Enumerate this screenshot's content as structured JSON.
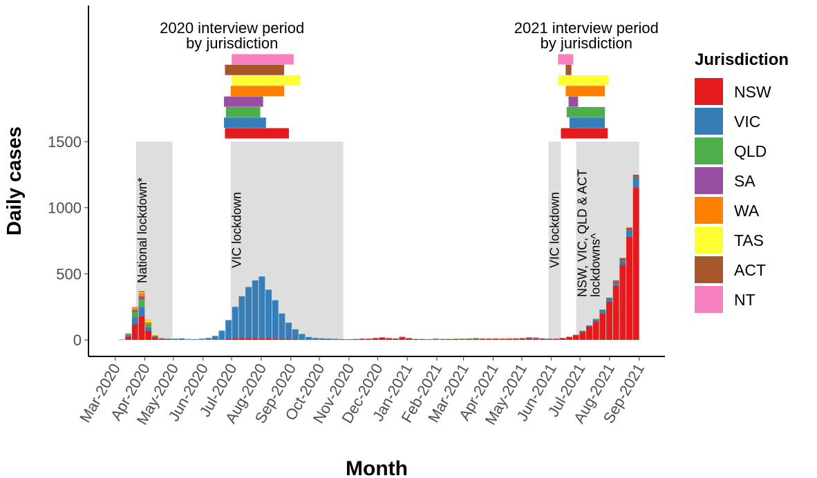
{
  "chart_data": {
    "type": "stacked-bar",
    "xlabel": "Month",
    "ylabel": "Daily cases",
    "legend_title": "Jurisdiction",
    "legend_position": "right",
    "xlim": [
      -28,
      576
    ],
    "ylim": [
      -125,
      2530
    ],
    "yticks": [
      0,
      500,
      1000,
      1500
    ],
    "xticks": [
      {
        "value": 0,
        "label": "Mar-2020"
      },
      {
        "value": 31,
        "label": "Apr-2020"
      },
      {
        "value": 61,
        "label": "May-2020"
      },
      {
        "value": 92,
        "label": "Jun-2020"
      },
      {
        "value": 122,
        "label": "Jul-2020"
      },
      {
        "value": 153,
        "label": "Aug-2020"
      },
      {
        "value": 184,
        "label": "Sep-2020"
      },
      {
        "value": 214,
        "label": "Oct-2020"
      },
      {
        "value": 245,
        "label": "Nov-2020"
      },
      {
        "value": 275,
        "label": "Dec-2020"
      },
      {
        "value": 306,
        "label": "Jan-2021"
      },
      {
        "value": 337,
        "label": "Feb-2021"
      },
      {
        "value": 365,
        "label": "Mar-2021"
      },
      {
        "value": 396,
        "label": "Apr-2021"
      },
      {
        "value": 426,
        "label": "May-2021"
      },
      {
        "value": 457,
        "label": "Jun-2021"
      },
      {
        "value": 487,
        "label": "Jul-2021"
      },
      {
        "value": 518,
        "label": "Aug-2021"
      },
      {
        "value": 549,
        "label": "Sep-2021"
      }
    ],
    "x": [
      0,
      7,
      14,
      21,
      28,
      35,
      42,
      49,
      56,
      63,
      70,
      77,
      84,
      91,
      98,
      105,
      112,
      119,
      126,
      133,
      140,
      147,
      154,
      161,
      168,
      175,
      182,
      189,
      196,
      203,
      210,
      217,
      224,
      231,
      238,
      245,
      252,
      259,
      266,
      273,
      280,
      287,
      294,
      301,
      308,
      315,
      322,
      329,
      336,
      343,
      350,
      357,
      364,
      371,
      378,
      385,
      392,
      399,
      406,
      413,
      420,
      427,
      434,
      441,
      448,
      455,
      462,
      469,
      476,
      483,
      490,
      497,
      504,
      511,
      518,
      525,
      532,
      539,
      546
    ],
    "series": [
      {
        "name": "NSW",
        "color": "#e41a1c",
        "interview_2020": [
          115,
          182
        ],
        "interview_2021": [
          467,
          516
        ],
        "values": [
          0,
          2,
          25,
          120,
          180,
          70,
          20,
          8,
          5,
          3,
          3,
          2,
          2,
          2,
          2,
          3,
          5,
          8,
          12,
          15,
          15,
          12,
          12,
          12,
          10,
          8,
          8,
          6,
          5,
          5,
          5,
          5,
          6,
          5,
          5,
          5,
          6,
          8,
          9,
          14,
          18,
          12,
          8,
          20,
          12,
          6,
          6,
          5,
          5,
          5,
          6,
          7,
          7,
          7,
          8,
          8,
          8,
          9,
          8,
          9,
          10,
          10,
          10,
          10,
          8,
          7,
          8,
          14,
          22,
          36,
          60,
          100,
          140,
          200,
          290,
          410,
          570,
          780,
          1150
        ]
      },
      {
        "name": "VIC",
        "color": "#377eb8",
        "interview_2020": [
          114,
          158
        ],
        "interview_2021": [
          476,
          513
        ],
        "values": [
          0,
          1,
          10,
          50,
          70,
          25,
          8,
          4,
          4,
          6,
          8,
          5,
          4,
          8,
          13,
          27,
          65,
          142,
          238,
          315,
          385,
          438,
          468,
          368,
          290,
          192,
          122,
          74,
          40,
          17,
          10,
          7,
          4,
          3,
          1,
          0,
          0,
          0,
          0,
          0,
          1,
          2,
          3,
          3,
          2,
          0,
          1,
          0,
          4,
          2,
          0,
          0,
          0,
          0,
          0,
          0,
          0,
          0,
          0,
          0,
          2,
          4,
          9,
          8,
          4,
          3,
          1,
          0,
          0,
          2,
          8,
          10,
          15,
          25,
          25,
          25,
          30,
          50,
          80
        ]
      },
      {
        "name": "QLD",
        "color": "#4daf4a",
        "interview_2020": [
          116,
          152
        ],
        "interview_2021": [
          473,
          513
        ],
        "values": [
          0,
          1,
          8,
          40,
          55,
          20,
          4,
          1,
          1,
          1,
          1,
          1,
          0,
          0,
          0,
          0,
          0,
          0,
          0,
          0,
          0,
          0,
          0,
          0,
          0,
          0,
          0,
          0,
          0,
          0,
          0,
          0,
          0,
          0,
          0,
          1,
          1,
          0,
          1,
          1,
          1,
          1,
          1,
          2,
          1,
          2,
          0,
          0,
          0,
          1,
          2,
          2,
          3,
          4,
          5,
          2,
          2,
          1,
          0,
          0,
          0,
          0,
          0,
          0,
          0,
          0,
          1,
          1,
          1,
          2,
          2,
          0,
          5,
          5,
          0,
          0,
          0,
          0,
          0
        ]
      },
      {
        "name": "SA",
        "color": "#984ea3",
        "interview_2020": [
          114,
          155
        ],
        "interview_2021": [
          475,
          485
        ],
        "values": [
          0,
          0,
          3,
          15,
          25,
          5,
          1,
          0,
          0,
          0,
          0,
          0,
          0,
          0,
          0,
          0,
          0,
          0,
          0,
          0,
          0,
          0,
          0,
          0,
          0,
          0,
          0,
          0,
          0,
          0,
          0,
          0,
          0,
          0,
          0,
          0,
          1,
          2,
          0,
          0,
          0,
          0,
          0,
          0,
          0,
          0,
          0,
          0,
          0,
          0,
          0,
          0,
          0,
          0,
          0,
          0,
          0,
          0,
          0,
          0,
          0,
          0,
          0,
          0,
          0,
          0,
          0,
          0,
          0,
          0,
          0,
          0,
          0,
          0,
          0,
          0,
          0,
          0,
          0
        ]
      },
      {
        "name": "WA",
        "color": "#ff7f00",
        "interview_2020": [
          121,
          177
        ],
        "interview_2021": [
          472,
          513
        ],
        "values": [
          0,
          0,
          3,
          15,
          25,
          15,
          3,
          1,
          0,
          0,
          0,
          0,
          0,
          0,
          0,
          0,
          0,
          0,
          0,
          0,
          0,
          0,
          0,
          0,
          0,
          0,
          0,
          0,
          0,
          0,
          0,
          0,
          0,
          0,
          0,
          0,
          0,
          0,
          0,
          0,
          0,
          0,
          0,
          0,
          0,
          0,
          1,
          1,
          1,
          0,
          0,
          1,
          0,
          1,
          2,
          2,
          2,
          2,
          2,
          3,
          0,
          1,
          1,
          0,
          0,
          0,
          0,
          0,
          1,
          0,
          0,
          0,
          0,
          0,
          0,
          0,
          0,
          0,
          0
        ]
      },
      {
        "name": "TAS",
        "color": "#ffff33",
        "interview_2020": [
          122,
          194
        ],
        "interview_2021": [
          464,
          517
        ],
        "values": [
          0,
          0,
          0,
          3,
          5,
          12,
          4,
          1,
          0,
          0,
          0,
          0,
          0,
          0,
          0,
          0,
          0,
          0,
          0,
          0,
          0,
          0,
          0,
          0,
          0,
          0,
          0,
          0,
          0,
          0,
          0,
          0,
          0,
          0,
          0,
          0,
          0,
          0,
          0,
          0,
          0,
          0,
          0,
          0,
          0,
          0,
          0,
          0,
          0,
          0,
          0,
          0,
          0,
          0,
          0,
          0,
          0,
          0,
          0,
          0,
          0,
          0,
          0,
          0,
          0,
          0,
          0,
          0,
          0,
          0,
          0,
          0,
          0,
          0,
          0,
          0,
          0,
          0,
          0
        ]
      },
      {
        "name": "ACT",
        "color": "#a65628",
        "interview_2020": [
          115,
          177
        ],
        "interview_2021": [
          472,
          478
        ],
        "values": [
          0,
          0,
          1,
          5,
          7,
          2,
          0,
          0,
          0,
          0,
          0,
          0,
          0,
          0,
          0,
          0,
          0,
          0,
          0,
          0,
          0,
          0,
          0,
          0,
          0,
          0,
          0,
          0,
          0,
          0,
          0,
          0,
          0,
          0,
          0,
          0,
          0,
          0,
          0,
          0,
          0,
          0,
          0,
          0,
          0,
          0,
          0,
          0,
          0,
          0,
          0,
          0,
          0,
          0,
          0,
          0,
          0,
          0,
          0,
          0,
          0,
          0,
          0,
          0,
          0,
          0,
          0,
          0,
          0,
          0,
          0,
          0,
          0,
          0,
          5,
          15,
          20,
          20,
          20
        ]
      },
      {
        "name": "NT",
        "color": "#f781bf",
        "interview_2020": [
          122,
          187
        ],
        "interview_2021": [
          464,
          480
        ],
        "values": [
          0,
          0,
          0,
          2,
          3,
          1,
          0,
          0,
          0,
          0,
          0,
          0,
          0,
          0,
          0,
          0,
          0,
          0,
          0,
          0,
          0,
          0,
          0,
          0,
          0,
          0,
          0,
          0,
          0,
          0,
          0,
          0,
          0,
          0,
          0,
          0,
          0,
          0,
          0,
          0,
          0,
          0,
          0,
          0,
          0,
          0,
          0,
          0,
          0,
          0,
          0,
          0,
          0,
          0,
          0,
          0,
          0,
          0,
          0,
          0,
          0,
          0,
          0,
          0,
          0,
          0,
          0,
          0,
          1,
          0,
          0,
          0,
          0,
          0,
          0,
          0,
          0,
          0,
          0
        ]
      }
    ],
    "interview_labels": {
      "interview_2020": [
        "2020 interview period",
        "by jurisdiction"
      ],
      "interview_2021": [
        "2021 interview period",
        "by jurisdiction"
      ]
    },
    "shaded_periods": [
      {
        "start": 22,
        "end": 60,
        "labels": [
          "National lockdown*"
        ]
      },
      {
        "start": 121,
        "end": 239,
        "labels": [
          "VIC lockdown"
        ]
      },
      {
        "start": 454,
        "end": 467,
        "labels": [
          "VIC lockdown"
        ]
      },
      {
        "start": 483,
        "end": 549,
        "labels": [
          "NSW, VIC, QLD & ACT",
          "lockdowns^"
        ]
      }
    ]
  }
}
